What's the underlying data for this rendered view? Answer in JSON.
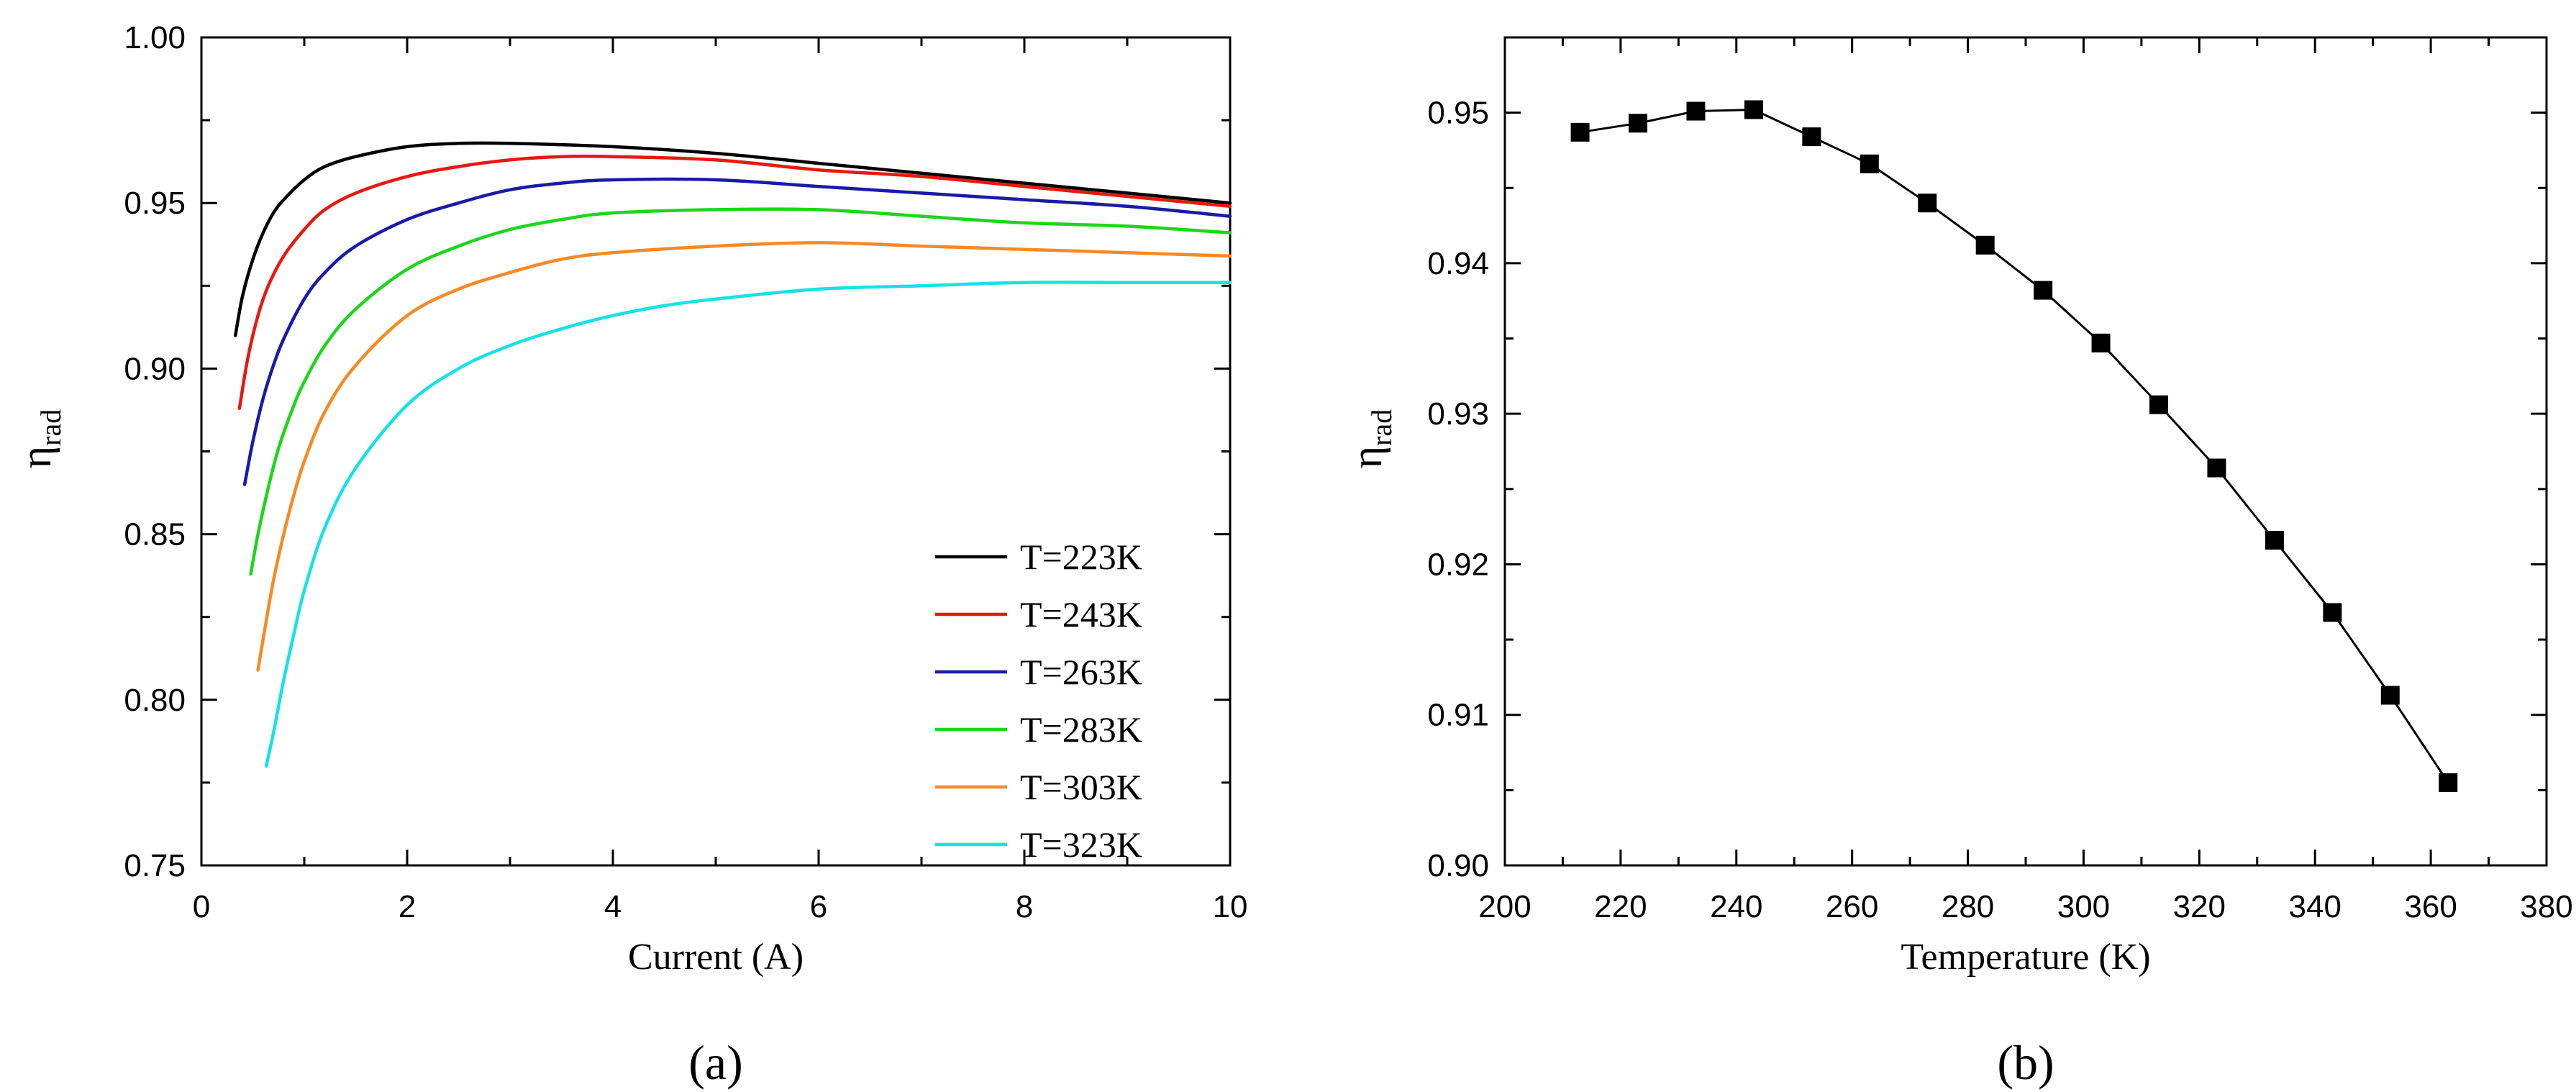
{
  "chart_data": [
    {
      "type": "line",
      "panel_label": "(a)",
      "xlabel": "Current (A)",
      "ylabel_main": "η",
      "ylabel_sub": "rad",
      "xlim": [
        0,
        10
      ],
      "ylim": [
        0.75,
        1.0
      ],
      "xticks": [
        "0",
        "2",
        "4",
        "6",
        "8",
        "10"
      ],
      "yticks": [
        "0.75",
        "0.80",
        "0.85",
        "0.90",
        "0.95",
        "1.00"
      ],
      "legend_position": "bottom-right",
      "series": [
        {
          "name": "T=223K",
          "color": "#000000",
          "x": [
            0.33,
            0.4,
            0.5,
            0.6,
            0.7,
            0.8,
            1.0,
            1.2,
            1.5,
            2.0,
            2.5,
            3.0,
            4.0,
            5.0,
            6.0,
            7.0,
            8.0,
            9.0,
            10.0
          ],
          "y": [
            0.91,
            0.922,
            0.933,
            0.941,
            0.947,
            0.951,
            0.957,
            0.961,
            0.964,
            0.967,
            0.968,
            0.968,
            0.967,
            0.965,
            0.962,
            0.959,
            0.956,
            0.953,
            0.95
          ]
        },
        {
          "name": "T=243K",
          "color": "#e8180f",
          "x": [
            0.37,
            0.45,
            0.55,
            0.65,
            0.8,
            1.0,
            1.2,
            1.5,
            2.0,
            2.5,
            3.0,
            3.5,
            4.0,
            5.0,
            6.0,
            7.0,
            8.0,
            9.0,
            10.0
          ],
          "y": [
            0.888,
            0.903,
            0.916,
            0.925,
            0.934,
            0.942,
            0.948,
            0.953,
            0.958,
            0.961,
            0.963,
            0.964,
            0.964,
            0.963,
            0.96,
            0.958,
            0.955,
            0.952,
            0.949
          ]
        },
        {
          "name": "T=263K",
          "color": "#1a1aa8",
          "x": [
            0.42,
            0.5,
            0.6,
            0.7,
            0.8,
            1.0,
            1.2,
            1.5,
            2.0,
            2.5,
            3.0,
            3.5,
            4.0,
            5.0,
            6.0,
            7.0,
            8.0,
            9.0,
            10.0
          ],
          "y": [
            0.865,
            0.878,
            0.891,
            0.901,
            0.909,
            0.921,
            0.929,
            0.937,
            0.945,
            0.95,
            0.954,
            0.956,
            0.957,
            0.957,
            0.955,
            0.953,
            0.951,
            0.949,
            0.946
          ]
        },
        {
          "name": "T=283K",
          "color": "#1dd61a",
          "x": [
            0.48,
            0.55,
            0.65,
            0.75,
            0.9,
            1.0,
            1.2,
            1.5,
            2.0,
            2.5,
            3.0,
            3.5,
            4.0,
            5.0,
            6.0,
            7.0,
            8.0,
            9.0,
            10.0
          ],
          "y": [
            0.838,
            0.85,
            0.864,
            0.876,
            0.889,
            0.896,
            0.907,
            0.918,
            0.93,
            0.937,
            0.942,
            0.945,
            0.947,
            0.948,
            0.948,
            0.946,
            0.944,
            0.943,
            0.941
          ]
        },
        {
          "name": "T=303K",
          "color": "#f58a25",
          "x": [
            0.55,
            0.62,
            0.7,
            0.8,
            0.9,
            1.0,
            1.2,
            1.5,
            2.0,
            2.5,
            3.0,
            3.5,
            4.0,
            5.0,
            6.0,
            7.0,
            8.0,
            9.0,
            10.0
          ],
          "y": [
            0.809,
            0.822,
            0.836,
            0.85,
            0.862,
            0.872,
            0.887,
            0.901,
            0.916,
            0.924,
            0.929,
            0.933,
            0.935,
            0.937,
            0.938,
            0.937,
            0.936,
            0.935,
            0.934
          ]
        },
        {
          "name": "T=323K",
          "color": "#17e1e6",
          "x": [
            0.63,
            0.7,
            0.8,
            0.9,
            1.0,
            1.2,
            1.5,
            2.0,
            2.5,
            3.0,
            3.5,
            4.0,
            4.5,
            5.0,
            6.0,
            7.0,
            8.0,
            9.0,
            10.0
          ],
          "y": [
            0.78,
            0.79,
            0.806,
            0.82,
            0.833,
            0.852,
            0.87,
            0.889,
            0.9,
            0.907,
            0.912,
            0.916,
            0.919,
            0.921,
            0.924,
            0.925,
            0.926,
            0.926,
            0.926
          ]
        }
      ]
    },
    {
      "type": "line",
      "panel_label": "(b)",
      "xlabel": "Temperature (K)",
      "ylabel_main": "η",
      "ylabel_sub": "rad",
      "xlim": [
        200,
        380
      ],
      "ylim": [
        0.9,
        0.955
      ],
      "xticks": [
        "200",
        "220",
        "240",
        "260",
        "280",
        "300",
        "320",
        "340",
        "360",
        "380"
      ],
      "yticks": [
        "0.90",
        "0.91",
        "0.92",
        "0.93",
        "0.94",
        "0.95"
      ],
      "marker": "square",
      "series": [
        {
          "name": "η_rad",
          "color": "#000000",
          "x": [
            213,
            223,
            233,
            243,
            253,
            263,
            273,
            283,
            293,
            303,
            313,
            323,
            333,
            343,
            353,
            363
          ],
          "y": [
            0.9487,
            0.9493,
            0.9501,
            0.9502,
            0.9484,
            0.9466,
            0.944,
            0.9412,
            0.9382,
            0.9347,
            0.9306,
            0.9264,
            0.9216,
            0.9168,
            0.9113,
            0.9055
          ]
        }
      ]
    }
  ]
}
